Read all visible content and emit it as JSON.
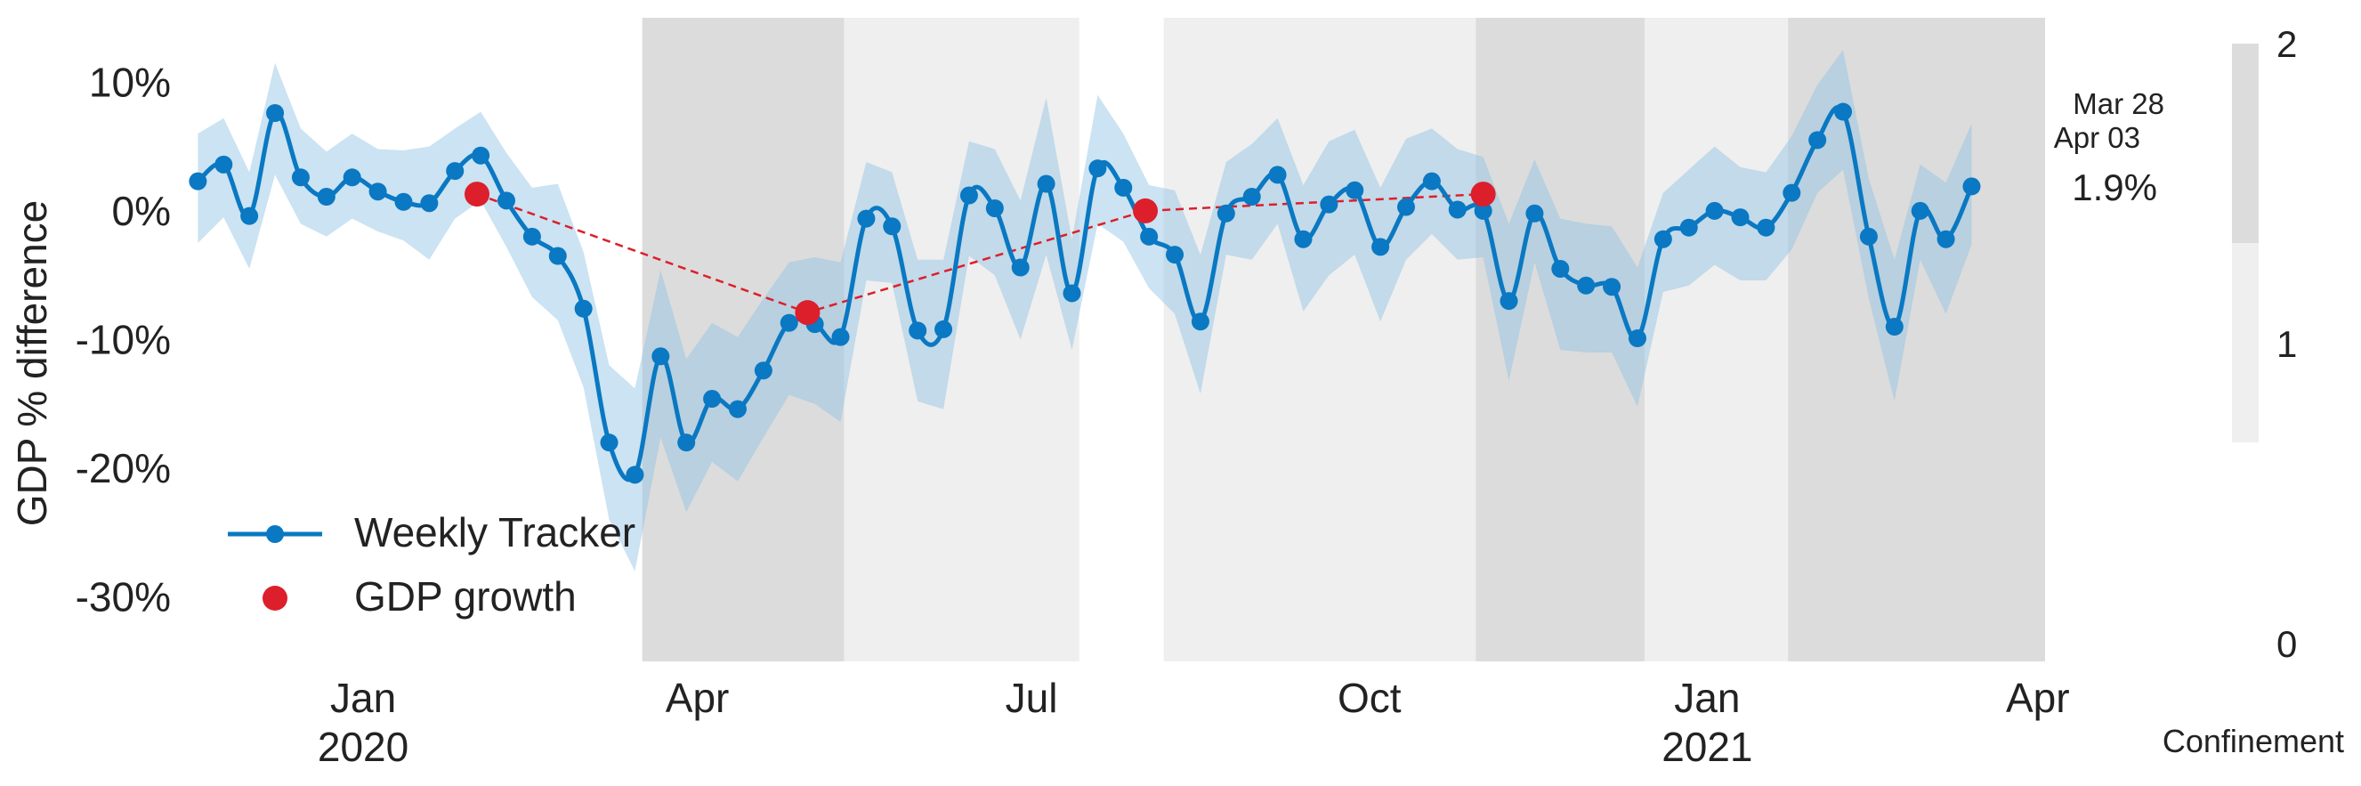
{
  "chart_data": {
    "type": "line",
    "ylabel": "GDP % difference",
    "ylim": [
      -35,
      15
    ],
    "y_ticks": [
      {
        "value": 10,
        "label": "10%"
      },
      {
        "value": 0,
        "label": "0%"
      },
      {
        "value": -10,
        "label": "-10%"
      },
      {
        "value": -20,
        "label": "-20%"
      },
      {
        "value": -30,
        "label": "-30%"
      }
    ],
    "xlim": [
      "2019-11-14",
      "2021-04-03"
    ],
    "x_ticks": [
      {
        "date": "2020-01-01",
        "label": "Jan",
        "sublabel": "2020"
      },
      {
        "date": "2020-04-01",
        "label": "Apr",
        "sublabel": ""
      },
      {
        "date": "2020-07-01",
        "label": "Jul",
        "sublabel": ""
      },
      {
        "date": "2020-10-01",
        "label": "Oct",
        "sublabel": ""
      },
      {
        "date": "2021-01-01",
        "label": "Jan",
        "sublabel": "2021"
      },
      {
        "date": "2021-04-01",
        "label": "Apr",
        "sublabel": ""
      }
    ],
    "grid": false,
    "legend": "bottom-left",
    "confinement_periods": [
      {
        "start": "2020-03-17",
        "end": "2020-05-11",
        "level": 2
      },
      {
        "start": "2020-05-11",
        "end": "2020-07-14",
        "level": 1
      },
      {
        "start": "2020-08-06",
        "end": "2020-10-30",
        "level": 1
      },
      {
        "start": "2020-10-30",
        "end": "2020-12-15",
        "level": 2
      },
      {
        "start": "2020-12-15",
        "end": "2021-01-23",
        "level": 1
      },
      {
        "start": "2021-01-23",
        "end": "2021-04-03",
        "level": 2
      }
    ],
    "series": [
      {
        "name": "Weekly Tracker",
        "color": "#0a78c2",
        "band_color": "#8cc1e3",
        "points": [
          {
            "date": "2019-11-17",
            "value": 2.3,
            "lo": -2.5,
            "hi": 6.0
          },
          {
            "date": "2019-11-24",
            "value": 3.6,
            "lo": -0.5,
            "hi": 7.2
          },
          {
            "date": "2019-12-01",
            "value": -0.4,
            "lo": -4.5,
            "hi": 3.0
          },
          {
            "date": "2019-12-08",
            "value": 7.6,
            "lo": 2.8,
            "hi": 11.5
          },
          {
            "date": "2019-12-15",
            "value": 2.6,
            "lo": -1.0,
            "hi": 6.4
          },
          {
            "date": "2019-12-22",
            "value": 1.1,
            "lo": -2.0,
            "hi": 4.6
          },
          {
            "date": "2019-12-29",
            "value": 2.6,
            "lo": -0.6,
            "hi": 6.0
          },
          {
            "date": "2020-01-05",
            "value": 1.5,
            "lo": -1.6,
            "hi": 4.8
          },
          {
            "date": "2020-01-12",
            "value": 0.7,
            "lo": -2.3,
            "hi": 4.7
          },
          {
            "date": "2020-01-19",
            "value": 0.6,
            "lo": -3.8,
            "hi": 5.0
          },
          {
            "date": "2020-01-26",
            "value": 3.1,
            "lo": -0.6,
            "hi": 6.4
          },
          {
            "date": "2020-02-02",
            "value": 4.3,
            "lo": 0.8,
            "hi": 7.7
          },
          {
            "date": "2020-02-09",
            "value": 0.8,
            "lo": -2.8,
            "hi": 4.5
          },
          {
            "date": "2020-02-16",
            "value": -2.0,
            "lo": -6.7,
            "hi": 1.8
          },
          {
            "date": "2020-02-23",
            "value": -3.5,
            "lo": -8.5,
            "hi": 2.1
          },
          {
            "date": "2020-03-01",
            "value": -7.6,
            "lo": -13.7,
            "hi": -3.2
          },
          {
            "date": "2020-03-08",
            "value": -18.0,
            "lo": -24.0,
            "hi": -12.0
          },
          {
            "date": "2020-03-15",
            "value": -20.5,
            "lo": -28.0,
            "hi": -13.8
          },
          {
            "date": "2020-03-22",
            "value": -11.3,
            "lo": -17.6,
            "hi": -4.6
          },
          {
            "date": "2020-03-29",
            "value": -18.0,
            "lo": -23.4,
            "hi": -11.5
          },
          {
            "date": "2020-04-05",
            "value": -14.6,
            "lo": -19.5,
            "hi": -8.7
          },
          {
            "date": "2020-04-12",
            "value": -15.4,
            "lo": -21.0,
            "hi": -9.8
          },
          {
            "date": "2020-04-19",
            "value": -12.4,
            "lo": -17.6,
            "hi": -6.8
          },
          {
            "date": "2020-04-26",
            "value": -8.7,
            "lo": -14.3,
            "hi": -4.0
          },
          {
            "date": "2020-05-03",
            "value": -8.8,
            "lo": -15.0,
            "hi": -3.6
          },
          {
            "date": "2020-05-10",
            "value": -9.8,
            "lo": -16.4,
            "hi": -4.0
          },
          {
            "date": "2020-05-17",
            "value": -0.6,
            "lo": -5.4,
            "hi": 3.8
          },
          {
            "date": "2020-05-24",
            "value": -1.2,
            "lo": -5.6,
            "hi": 3.0
          },
          {
            "date": "2020-05-31",
            "value": -9.3,
            "lo": -14.8,
            "hi": -3.8
          },
          {
            "date": "2020-06-07",
            "value": -9.2,
            "lo": -15.4,
            "hi": -3.8
          },
          {
            "date": "2020-06-14",
            "value": 1.2,
            "lo": -3.5,
            "hi": 5.4
          },
          {
            "date": "2020-06-21",
            "value": 0.2,
            "lo": -5.0,
            "hi": 4.8
          },
          {
            "date": "2020-06-28",
            "value": -4.4,
            "lo": -10.0,
            "hi": 0.8
          },
          {
            "date": "2020-07-05",
            "value": 2.1,
            "lo": -3.4,
            "hi": 8.8
          },
          {
            "date": "2020-07-12",
            "value": -6.4,
            "lo": -10.8,
            "hi": -2.2
          },
          {
            "date": "2020-07-19",
            "value": 3.3,
            "lo": -1.0,
            "hi": 9.0
          },
          {
            "date": "2020-07-26",
            "value": 1.8,
            "lo": -2.4,
            "hi": 6.0
          },
          {
            "date": "2020-08-02",
            "value": -2.0,
            "lo": -6.0,
            "hi": 2.0
          },
          {
            "date": "2020-08-09",
            "value": -3.4,
            "lo": -8.0,
            "hi": 1.6
          },
          {
            "date": "2020-08-16",
            "value": -8.6,
            "lo": -14.2,
            "hi": -3.4
          },
          {
            "date": "2020-08-23",
            "value": -0.2,
            "lo": -3.4,
            "hi": 3.8
          },
          {
            "date": "2020-08-30",
            "value": 1.1,
            "lo": -3.8,
            "hi": 5.2
          },
          {
            "date": "2020-09-06",
            "value": 2.8,
            "lo": -1.0,
            "hi": 7.2
          },
          {
            "date": "2020-09-13",
            "value": -2.2,
            "lo": -7.8,
            "hi": 2.0
          },
          {
            "date": "2020-09-20",
            "value": 0.5,
            "lo": -5.0,
            "hi": 5.4
          },
          {
            "date": "2020-09-27",
            "value": 1.6,
            "lo": -3.4,
            "hi": 6.3
          },
          {
            "date": "2020-10-04",
            "value": -2.8,
            "lo": -8.6,
            "hi": 1.8
          },
          {
            "date": "2020-10-11",
            "value": 0.3,
            "lo": -3.8,
            "hi": 5.6
          },
          {
            "date": "2020-10-18",
            "value": 2.3,
            "lo": -1.8,
            "hi": 6.4
          },
          {
            "date": "2020-10-25",
            "value": 0.1,
            "lo": -3.8,
            "hi": 4.8
          },
          {
            "date": "2020-11-01",
            "value": 0.0,
            "lo": -3.6,
            "hi": 4.2
          },
          {
            "date": "2020-11-08",
            "value": -7.0,
            "lo": -13.2,
            "hi": -1.0
          },
          {
            "date": "2020-11-15",
            "value": -0.2,
            "lo": -4.0,
            "hi": 4.0
          },
          {
            "date": "2020-11-22",
            "value": -4.5,
            "lo": -10.8,
            "hi": -0.6
          },
          {
            "date": "2020-11-29",
            "value": -5.8,
            "lo": -11.0,
            "hi": -1.0
          },
          {
            "date": "2020-12-06",
            "value": -5.9,
            "lo": -11.0,
            "hi": -1.2
          },
          {
            "date": "2020-12-13",
            "value": -9.9,
            "lo": -15.2,
            "hi": -4.4
          },
          {
            "date": "2020-12-20",
            "value": -2.2,
            "lo": -6.3,
            "hi": 1.4
          },
          {
            "date": "2020-12-27",
            "value": -1.3,
            "lo": -5.8,
            "hi": 3.2
          },
          {
            "date": "2021-01-03",
            "value": 0.0,
            "lo": -4.2,
            "hi": 5.0
          },
          {
            "date": "2021-01-10",
            "value": -0.5,
            "lo": -5.4,
            "hi": 3.4
          },
          {
            "date": "2021-01-17",
            "value": -1.3,
            "lo": -5.4,
            "hi": 3.0
          },
          {
            "date": "2021-01-24",
            "value": 1.4,
            "lo": -3.0,
            "hi": 5.8
          },
          {
            "date": "2021-01-31",
            "value": 5.5,
            "lo": 1.4,
            "hi": 9.8
          },
          {
            "date": "2021-02-07",
            "value": 7.7,
            "lo": 3.2,
            "hi": 12.5
          },
          {
            "date": "2021-02-14",
            "value": -2.0,
            "lo": -6.8,
            "hi": 2.5
          },
          {
            "date": "2021-02-21",
            "value": -9.0,
            "lo": -14.8,
            "hi": -3.8
          },
          {
            "date": "2021-02-28",
            "value": 0.0,
            "lo": -3.8,
            "hi": 3.6
          },
          {
            "date": "2021-03-07",
            "value": -2.2,
            "lo": -8.0,
            "hi": 2.2
          },
          {
            "date": "2021-03-14",
            "value": 1.9,
            "lo": -2.6,
            "hi": 6.8
          }
        ]
      },
      {
        "name": "GDP growth",
        "color": "#dc1f2b",
        "points": [
          {
            "date": "2020-02-01",
            "value": 1.3
          },
          {
            "date": "2020-05-01",
            "value": -7.9
          },
          {
            "date": "2020-08-01",
            "value": 0.0
          },
          {
            "date": "2020-11-01",
            "value": 1.3
          }
        ]
      }
    ],
    "annotations": {
      "date_top": "Mar 28",
      "date_bottom": "Apr 03",
      "latest_value": "1.9%",
      "latest_value_color": "#0a78c2"
    },
    "colorbar": {
      "label": "Confinement",
      "ticks": [
        {
          "value": 2,
          "label": "2"
        },
        {
          "value": 1,
          "label": "1"
        },
        {
          "value": 0,
          "label": "0"
        }
      ],
      "colors": {
        "level1": "#efefef",
        "level2": "#dcdcdc"
      }
    }
  }
}
